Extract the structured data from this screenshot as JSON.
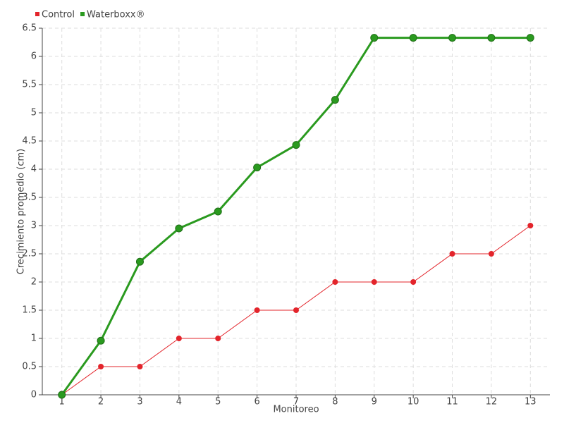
{
  "chart_data": {
    "type": "line",
    "categories": [
      "1",
      "2",
      "3",
      "4",
      "5",
      "6",
      "7",
      "8",
      "9",
      "10",
      "11",
      "12",
      "13"
    ],
    "series": [
      {
        "name": "Control",
        "color": "#e3242b",
        "values": [
          0,
          0.5,
          0.5,
          1,
          1,
          1.5,
          1.5,
          2,
          2,
          2,
          2.5,
          2.5,
          3
        ]
      },
      {
        "name": "Waterboxx®",
        "color": "#2a9a1f",
        "values": [
          0,
          0.96,
          2.36,
          2.95,
          3.25,
          4.03,
          4.43,
          5.23,
          6.33,
          6.33,
          6.33,
          6.33,
          6.33
        ]
      }
    ],
    "x_label": "Monitoreo",
    "y_label": "Crecimiento promedio (cm)",
    "ylim": [
      0,
      6.5
    ],
    "yticks": [
      0,
      0.5,
      1,
      1.5,
      2,
      2.5,
      3,
      3.5,
      4,
      4.5,
      5,
      5.5,
      6,
      6.5
    ],
    "grid": true,
    "legend": "top-left"
  }
}
